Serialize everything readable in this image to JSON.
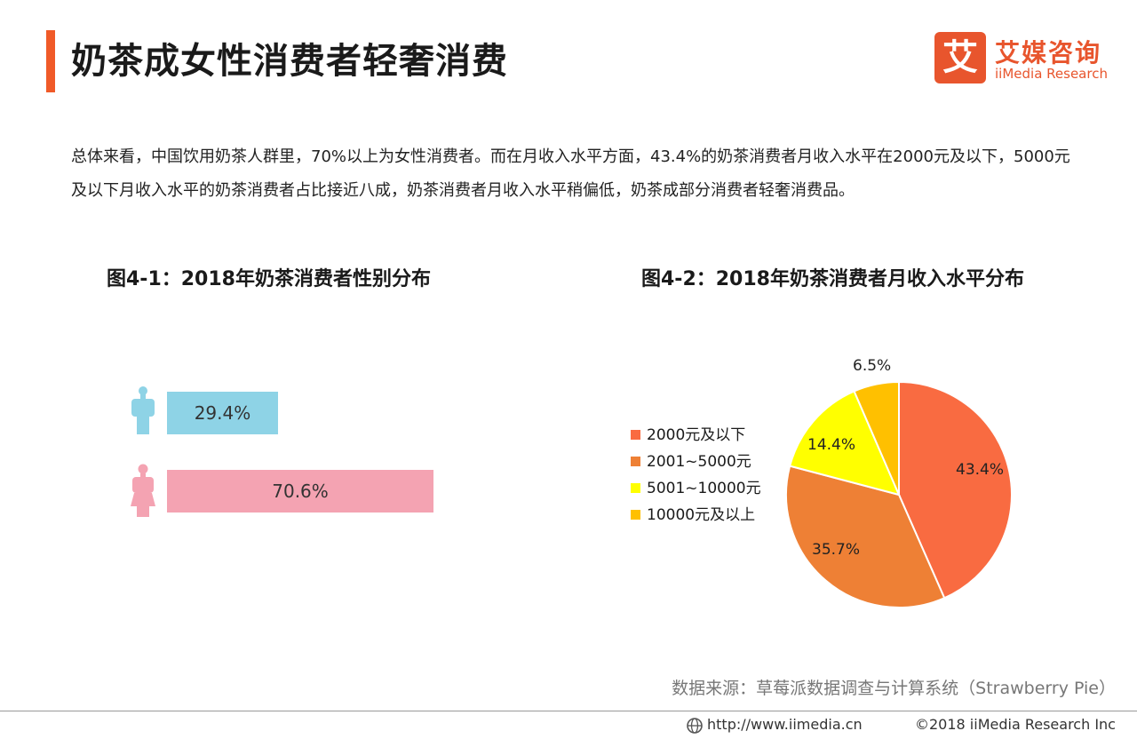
{
  "header": {
    "title": "奶茶成女性消费者轻奢消费",
    "accent_color": "#f05a28"
  },
  "logo": {
    "char": "艾",
    "cn": "艾媒咨询",
    "en": "iiMedia Research",
    "color": "#e8552d"
  },
  "intro": "总体来看，中国饮用奶茶人群里，70%以上为女性消费者。而在月收入水平方面，43.4%的奶茶消费者月收入水平在2000元及以下，5000元及以下月收入水平的奶茶消费者占比接近八成，奶茶消费者月收入水平稍偏低，奶茶成部分消费者轻奢消费品。",
  "chart_data": [
    {
      "type": "bar",
      "orientation": "horizontal",
      "title": "图4-1：2018年奶茶消费者性别分布",
      "categories": [
        "male",
        "female"
      ],
      "category_icons": [
        "male-person-icon",
        "female-person-icon"
      ],
      "values": [
        29.4,
        70.6
      ],
      "labels": [
        "29.4%",
        "70.6%"
      ],
      "colors": [
        "#8ed3e6",
        "#f4a3b2"
      ],
      "unit": "%"
    },
    {
      "type": "pie",
      "title": "图4-2：2018年奶茶消费者月收入水平分布",
      "categories": [
        "2000元及以下",
        "2001~5000元",
        "5001~10000元",
        "10000元及以上"
      ],
      "values": [
        43.4,
        35.7,
        14.4,
        6.5
      ],
      "labels": [
        "43.4%",
        "35.7%",
        "14.4%",
        "6.5%"
      ],
      "colors": [
        "#f96b41",
        "#ee8035",
        "#ffff00",
        "#ffc000"
      ],
      "legend_position": "left"
    }
  ],
  "source": "数据来源：草莓派数据调查与计算系统（Strawberry  Pie）",
  "footer": {
    "url": "http://www.iimedia.cn",
    "copyright": "©2018  iiMedia Research  Inc"
  }
}
